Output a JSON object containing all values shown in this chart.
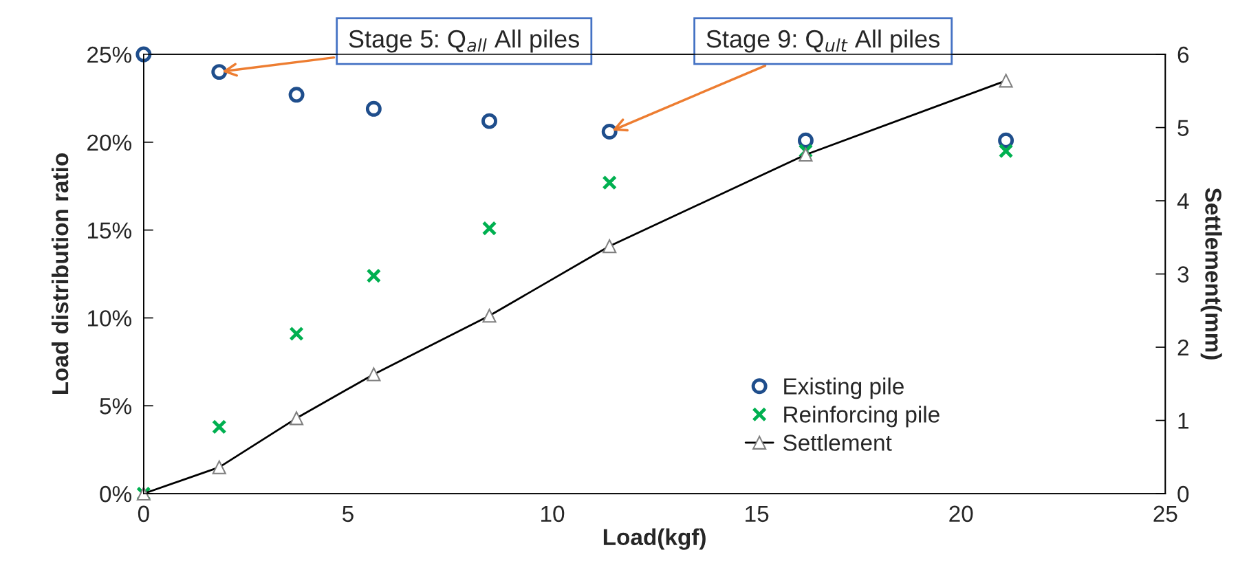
{
  "chart_data": {
    "type": "scatter",
    "xlabel": "Load(kgf)",
    "ylabel": "Load distribution ratio",
    "y2label": "Settlement(mm)",
    "series": [
      {
        "name": "Existing pile",
        "type": "scatter",
        "color": "#1f4e8c",
        "marker": "circle",
        "x": [
          0,
          1.85,
          3.74,
          5.63,
          8.46,
          11.4,
          16.2,
          21.1
        ],
        "values": [
          25.0,
          24.0,
          22.7,
          21.9,
          21.2,
          20.6,
          20.1,
          20.1
        ]
      },
      {
        "name": "Reinforcing pile",
        "type": "scatter",
        "color": "#00b050",
        "marker": "cross",
        "x": [
          0,
          1.85,
          3.74,
          5.63,
          8.46,
          11.4,
          16.2,
          21.1
        ],
        "values": [
          0.0,
          3.8,
          9.1,
          12.4,
          15.1,
          17.7,
          19.5,
          19.5
        ]
      },
      {
        "name": "Settlement",
        "type": "line",
        "color": "#000000",
        "marker": "triangle",
        "axis": "y2",
        "x": [
          0,
          1.85,
          3.74,
          5.63,
          8.46,
          11.4,
          16.2,
          21.1
        ],
        "values": [
          0.0,
          0.36,
          1.03,
          1.63,
          2.43,
          3.38,
          4.63,
          5.64
        ]
      }
    ],
    "xlim": [
      0,
      25
    ],
    "xticks": [
      0,
      5,
      10,
      15,
      20,
      25
    ],
    "ylim": [
      0,
      25
    ],
    "yticks": [
      {
        "value": 0,
        "label": "0%"
      },
      {
        "value": 5,
        "label": "5%"
      },
      {
        "value": 10,
        "label": "10%"
      },
      {
        "value": 15,
        "label": "15%"
      },
      {
        "value": 20,
        "label": "20%"
      },
      {
        "value": 25,
        "label": "25%"
      }
    ],
    "y2lim": [
      0,
      6
    ],
    "y2ticks": [
      0,
      1,
      2,
      3,
      4,
      5,
      6
    ],
    "annotations": [
      {
        "text": "Stage 5: Q$_{all}$ All piles",
        "x": 1.85,
        "y": 24.0
      },
      {
        "text": "Stage 9: Q$_{ult}$ All piles",
        "x": 11.4,
        "y": 20.6
      }
    ],
    "grid": false,
    "legend": "bottom right"
  }
}
